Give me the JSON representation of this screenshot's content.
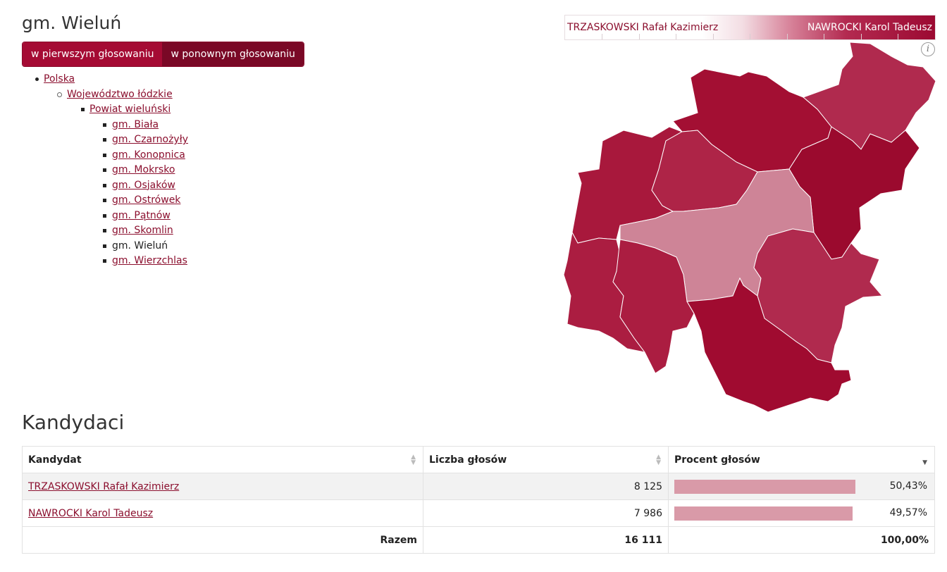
{
  "page": {
    "title": "gm. Wieluń"
  },
  "tabs": [
    {
      "label": "w pierwszym głosowaniu"
    },
    {
      "label": "w ponownym głosowaniu"
    }
  ],
  "breadcrumb": {
    "country": "Polska",
    "voivodeship": "Województwo łódzkie",
    "county": "Powiat wieluński",
    "communes": [
      {
        "label": "gm. Biała",
        "link": true
      },
      {
        "label": "gm. Czarnożyły",
        "link": true
      },
      {
        "label": "gm. Konopnica",
        "link": true
      },
      {
        "label": "gm. Mokrsko",
        "link": true
      },
      {
        "label": "gm. Osjaków",
        "link": true
      },
      {
        "label": "gm. Ostrówek",
        "link": true
      },
      {
        "label": "gm. Pątnów",
        "link": true
      },
      {
        "label": "gm. Skomlin",
        "link": true
      },
      {
        "label": "gm. Wieluń",
        "link": false
      },
      {
        "label": "gm. Wierzchlas",
        "link": true
      }
    ]
  },
  "legend": {
    "left_label": "TRZASKOWSKI Rafał Kazimierz",
    "right_label": "NAWROCKI Karol Tadeusz"
  },
  "info_icon": "info-icon",
  "map_colors": {
    "strong": "#a00b30",
    "mid": "#b02a4e",
    "medium": "#a8183c",
    "light": "#cf8396"
  },
  "candidates": {
    "heading": "Kandydaci",
    "columns": [
      "Kandydat",
      "Liczba głosów",
      "Procent głosów"
    ],
    "rows": [
      {
        "name": "TRZASKOWSKI Rafał Kazimierz",
        "votes": "8 125",
        "percent": "50,43%",
        "share": 50.43
      },
      {
        "name": "NAWROCKI Karol Tadeusz",
        "votes": "7 986",
        "percent": "49,57%",
        "share": 49.57
      }
    ],
    "total": {
      "label": "Razem",
      "votes": "16 111",
      "percent": "100,00%"
    }
  }
}
